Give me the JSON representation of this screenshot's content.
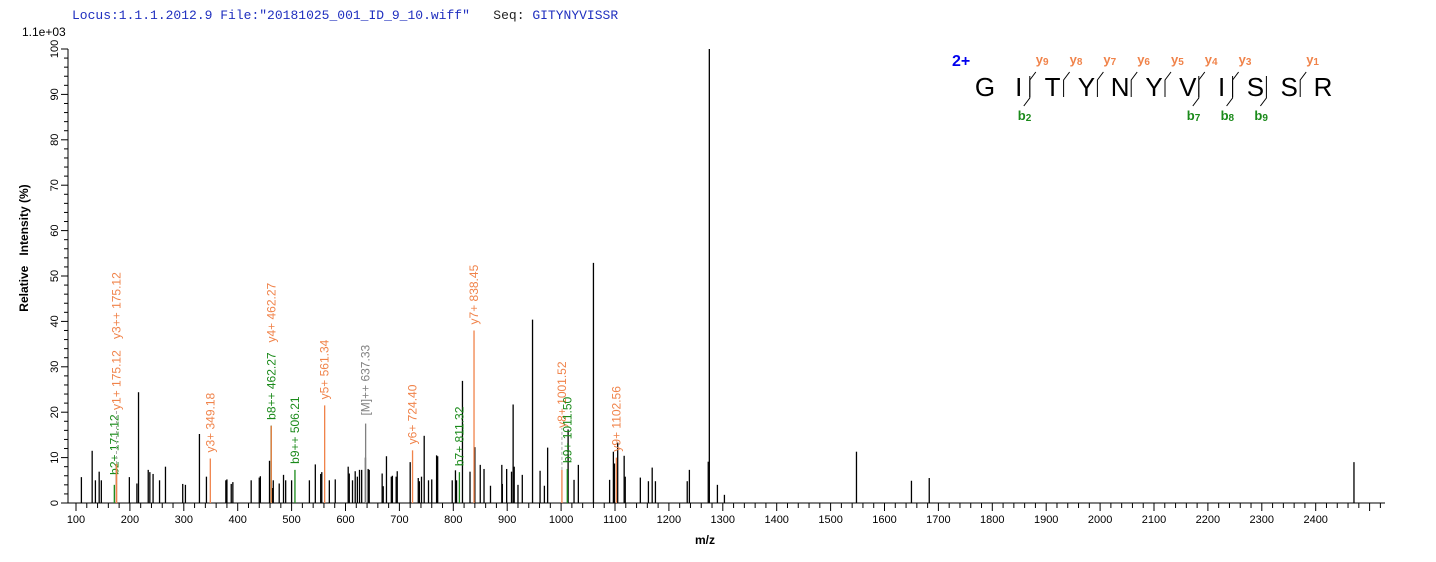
{
  "header": {
    "locus": "Locus:1.1.1.2012.9",
    "file": "File:\"20181025_001_ID_9_10.wiff\"",
    "seq_label": "Seq:",
    "seq_value": "GITYNYVISSR"
  },
  "chart_data": {
    "type": "bar",
    "subtype": "mass-spectrum",
    "scale_label": "1.1e+03",
    "xlabel": "m/z",
    "ylabel": "Relative   Intensity (%)",
    "xlim": [
      85,
      2530
    ],
    "ylim": [
      0,
      100
    ],
    "x_ticks": [
      100,
      200,
      300,
      400,
      500,
      600,
      700,
      800,
      900,
      1000,
      1100,
      1200,
      1300,
      1400,
      1500,
      1600,
      1700,
      1800,
      1900,
      2000,
      2100,
      2200,
      2300,
      2400
    ],
    "y_ticks": [
      0,
      10,
      20,
      30,
      40,
      50,
      60,
      70,
      80,
      90,
      100
    ],
    "grid": false,
    "colors": {
      "b_ion": "#1a8a1a",
      "y_ion": "#f0834a",
      "precursor": "#808080",
      "unmatched": "#000000",
      "charge": "#0000ee"
    },
    "peaks": [
      [
        110,
        5.7
      ],
      [
        130,
        11.5
      ],
      [
        136,
        5.0
      ],
      [
        143,
        6.9
      ],
      [
        147,
        5.0
      ],
      [
        175,
        8.6
      ],
      [
        199,
        5.7
      ],
      [
        213,
        4.3
      ],
      [
        216,
        24.4
      ],
      [
        234,
        7.3
      ],
      [
        237,
        6.8
      ],
      [
        243,
        6.4
      ],
      [
        255,
        5.0
      ],
      [
        266,
        8.0
      ],
      [
        298,
        4.2
      ],
      [
        303,
        4.0
      ],
      [
        329,
        15.2
      ],
      [
        342,
        5.8
      ],
      [
        378,
        5.0
      ],
      [
        380,
        5.2
      ],
      [
        388,
        4.2
      ],
      [
        391,
        4.6
      ],
      [
        425,
        5.0
      ],
      [
        440,
        5.6
      ],
      [
        442,
        5.9
      ],
      [
        459,
        9.3
      ],
      [
        462,
        17.0
      ],
      [
        464,
        3.3
      ],
      [
        466,
        5.0
      ],
      [
        477,
        4.3
      ],
      [
        485,
        6.2
      ],
      [
        489,
        5.0
      ],
      [
        500,
        5.0
      ],
      [
        533,
        5.0
      ],
      [
        544,
        8.5
      ],
      [
        554,
        6.4
      ],
      [
        556,
        6.8
      ],
      [
        570,
        5.0
      ],
      [
        581,
        5.2
      ],
      [
        605,
        8.0
      ],
      [
        607,
        6.5
      ],
      [
        613,
        5.0
      ],
      [
        618,
        7.0
      ],
      [
        622,
        5.8
      ],
      [
        626,
        7.3
      ],
      [
        630,
        7.3
      ],
      [
        637,
        10.0
      ],
      [
        642,
        7.5
      ],
      [
        644,
        7.3
      ],
      [
        668,
        6.5
      ],
      [
        670,
        3.7
      ],
      [
        676,
        10.3
      ],
      [
        685,
        5.8
      ],
      [
        687,
        6.0
      ],
      [
        694,
        5.8
      ],
      [
        696,
        7.0
      ],
      [
        720,
        9.0
      ],
      [
        735,
        5.5
      ],
      [
        737,
        4.8
      ],
      [
        741,
        5.8
      ],
      [
        746,
        14.8
      ],
      [
        754,
        5.0
      ],
      [
        760,
        5.2
      ],
      [
        769,
        10.5
      ],
      [
        771,
        10.3
      ],
      [
        798,
        5.0
      ],
      [
        804,
        7.2
      ],
      [
        806,
        5.0
      ],
      [
        817,
        26.9
      ],
      [
        831,
        6.9
      ],
      [
        840,
        12.3
      ],
      [
        850,
        8.4
      ],
      [
        857,
        7.5
      ],
      [
        869,
        3.8
      ],
      [
        890,
        8.4
      ],
      [
        891,
        4.2
      ],
      [
        899,
        7.5
      ],
      [
        908,
        6.9
      ],
      [
        911,
        21.7
      ],
      [
        913,
        8.0
      ],
      [
        920,
        4.0
      ],
      [
        928,
        6.2
      ],
      [
        947,
        40.4
      ],
      [
        961,
        7.1
      ],
      [
        969,
        3.8
      ],
      [
        975,
        12.2
      ],
      [
        1013,
        16.2
      ],
      [
        1024,
        5.1
      ],
      [
        1032,
        8.4
      ],
      [
        1060,
        52.9
      ],
      [
        1090,
        5.1
      ],
      [
        1097,
        11.3
      ],
      [
        1099,
        8.7
      ],
      [
        1105,
        13.3
      ],
      [
        1117,
        10.4
      ],
      [
        1119,
        5.8
      ],
      [
        1147,
        5.6
      ],
      [
        1162,
        4.8
      ],
      [
        1169,
        7.8
      ],
      [
        1175,
        4.8
      ],
      [
        1234,
        4.8
      ],
      [
        1238,
        7.3
      ],
      [
        1273,
        9.1
      ],
      [
        1275,
        100
      ],
      [
        1290,
        4.0
      ],
      [
        1303,
        1.8
      ],
      [
        1548,
        11.3
      ],
      [
        1650,
        4.9
      ],
      [
        1683,
        5.5
      ],
      [
        2471,
        9.0
      ]
    ],
    "annotations": [
      {
        "mz": 171.12,
        "intensity": 4.0,
        "label": "b2+ 171.12",
        "ion": "b"
      },
      {
        "mz": 175.12,
        "intensity": 8.6,
        "label": "y1+ 175.12",
        "ion": "y"
      },
      {
        "mz": 175.12,
        "intensity": 8.6,
        "label": "y3++ 175.12",
        "ion": "y"
      },
      {
        "mz": 349.18,
        "intensity": 9.8,
        "label": "y3+ 349.18",
        "ion": "y"
      },
      {
        "mz": 462.27,
        "intensity": 17.0,
        "label": "b8++ 462.27",
        "ion": "b"
      },
      {
        "mz": 462.27,
        "intensity": 17.0,
        "label": "y4+ 462.27",
        "ion": "y"
      },
      {
        "mz": 506.21,
        "intensity": 7.3,
        "label": "b9++ 506.21",
        "ion": "b"
      },
      {
        "mz": 561.34,
        "intensity": 21.5,
        "label": "y5+ 561.34",
        "ion": "y"
      },
      {
        "mz": 637.33,
        "intensity": 17.5,
        "label": "[M]++ 637.33",
        "ion": "precursor"
      },
      {
        "mz": 724.4,
        "intensity": 11.6,
        "label": "y6+ 724.40",
        "ion": "y"
      },
      {
        "mz": 811.32,
        "intensity": 6.8,
        "label": "b7+ 811.32",
        "ion": "b"
      },
      {
        "mz": 838.45,
        "intensity": 38.0,
        "label": "y7+ 838.45",
        "ion": "y"
      },
      {
        "mz": 1001.52,
        "intensity": 7.3,
        "label": "y8+ 1001.52",
        "ion": "y"
      },
      {
        "mz": 1011.5,
        "intensity": 7.5,
        "label": "b9+ 1011.50",
        "ion": "b"
      },
      {
        "mz": 1102.56,
        "intensity": 10.0,
        "label": "y9+ 1102.56",
        "ion": "y"
      }
    ]
  },
  "sequence_panel": {
    "charge": "2+",
    "residues": [
      "G",
      "I",
      "T",
      "Y",
      "N",
      "Y",
      "V",
      "I",
      "S",
      "S",
      "R"
    ],
    "y_ions": [
      {
        "label": "y",
        "n": "9",
        "after": 2
      },
      {
        "label": "y",
        "n": "8",
        "after": 3
      },
      {
        "label": "y",
        "n": "7",
        "after": 4
      },
      {
        "label": "y",
        "n": "6",
        "after": 5
      },
      {
        "label": "y",
        "n": "5",
        "after": 6
      },
      {
        "label": "y",
        "n": "4",
        "after": 7
      },
      {
        "label": "y",
        "n": "3",
        "after": 8
      },
      {
        "label": "y",
        "n": "1",
        "after": 10
      }
    ],
    "b_ions": [
      {
        "label": "b",
        "n": "2",
        "after": 2
      },
      {
        "label": "b",
        "n": "7",
        "after": 7
      },
      {
        "label": "b",
        "n": "8",
        "after": 8
      },
      {
        "label": "b",
        "n": "9",
        "after": 9
      }
    ]
  }
}
